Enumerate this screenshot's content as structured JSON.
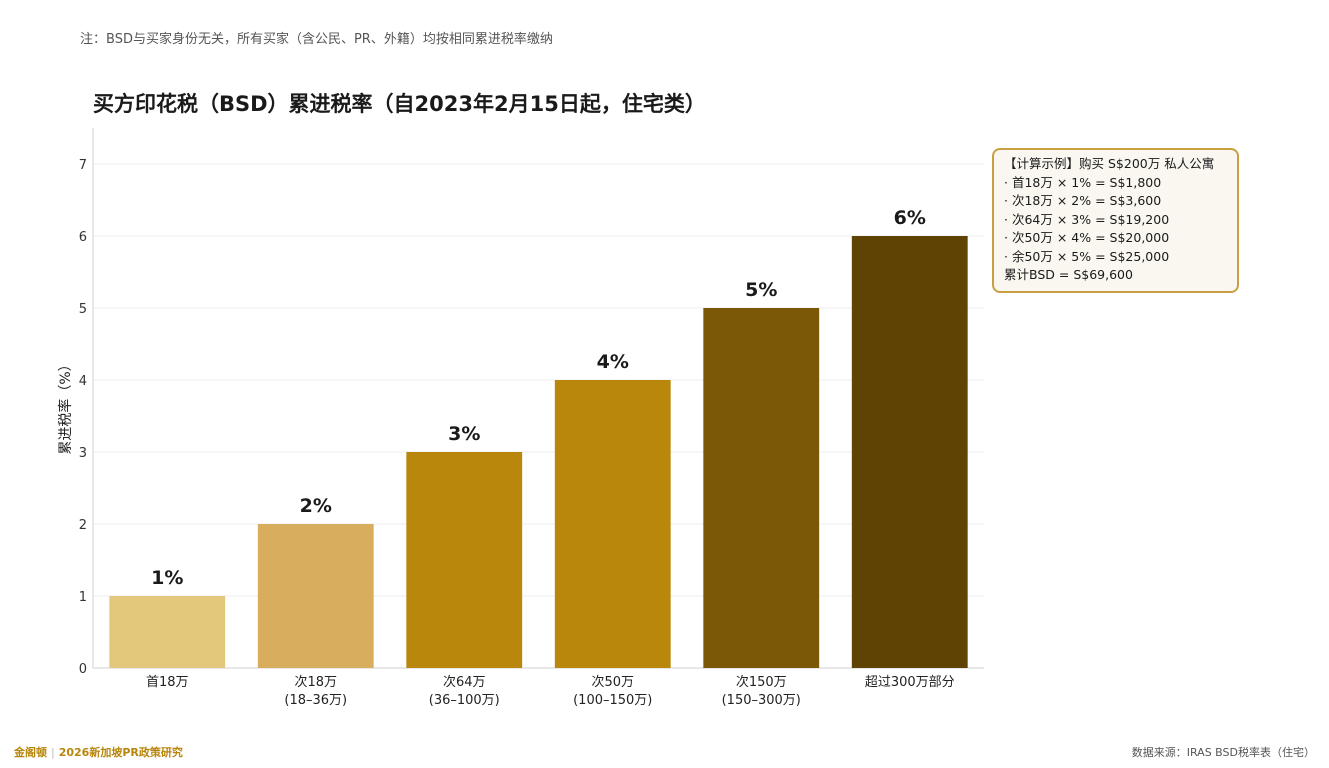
{
  "note": "注：BSD与买家身份无关，所有买家（含公民、PR、外籍）均按相同累进税率缴纳",
  "chart_data": {
    "type": "bar",
    "title": "买方印花税（BSD）累进税率（自2023年2月15日起，住宅类）",
    "ylabel": "累进税率（%）",
    "xlabel": "",
    "ylim": [
      0,
      7.5
    ],
    "yticks": [
      0,
      1,
      2,
      3,
      4,
      5,
      6,
      7
    ],
    "grid": true,
    "categories": [
      [
        "首18万"
      ],
      [
        "次18万",
        "(18–36万)"
      ],
      [
        "次64万",
        "(36–100万)"
      ],
      [
        "次50万",
        "(100–150万)"
      ],
      [
        "次150万",
        "(150–300万)"
      ],
      [
        "超过300万部分"
      ]
    ],
    "values": [
      1,
      2,
      3,
      4,
      5,
      6
    ],
    "value_labels": [
      "1%",
      "2%",
      "3%",
      "4%",
      "5%",
      "6%"
    ],
    "colors": [
      "#e3c77b",
      "#d9ad5e",
      "#b9870c",
      "#b9870c",
      "#7a5807",
      "#5e4304"
    ]
  },
  "callout": {
    "lines": [
      "【计算示例】购买 S$200万 私人公寓",
      "· 首18万 × 1% = S$1,800",
      "· 次18万 × 2% = S$3,600",
      "· 次64万 × 3% = S$19,200",
      "· 次50万 × 4% = S$20,000",
      "· 余50万 × 5% = S$25,000",
      "累计BSD = S$69,600"
    ]
  },
  "footer": {
    "brand": "金阁顿",
    "separator": "|",
    "report": "2026新加坡PR政策研究",
    "source": "数据来源：IRAS BSD税率表（住宅）"
  }
}
